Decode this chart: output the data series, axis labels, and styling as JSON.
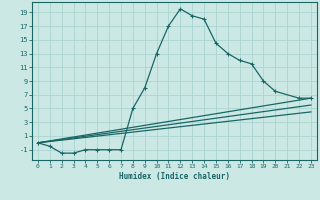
{
  "xlabel": "Humidex (Indice chaleur)",
  "bg_color": "#cce8e4",
  "grid_color": "#aad4d0",
  "line_color": "#1a6666",
  "xlim": [
    -0.5,
    23.5
  ],
  "ylim": [
    -2.5,
    20.5
  ],
  "xticks": [
    0,
    1,
    2,
    3,
    4,
    5,
    6,
    7,
    8,
    9,
    10,
    11,
    12,
    13,
    14,
    15,
    16,
    17,
    18,
    19,
    20,
    21,
    22,
    23
  ],
  "yticks": [
    -1,
    1,
    3,
    5,
    7,
    9,
    11,
    13,
    15,
    17,
    19
  ],
  "series_main": {
    "x": [
      0,
      1,
      2,
      3,
      4,
      5,
      6,
      7,
      8,
      9,
      10,
      11,
      12,
      13,
      14,
      15,
      16,
      17,
      18,
      19,
      20,
      22,
      23
    ],
    "y": [
      0,
      -0.5,
      -1.5,
      -1.5,
      -1,
      -1,
      -1,
      -1,
      5,
      8,
      13,
      17,
      19.5,
      18.5,
      18,
      14.5,
      13,
      12,
      11.5,
      9,
      7.5,
      6.5,
      6.5
    ]
  },
  "series_dotted": {
    "x": [
      0,
      1,
      2,
      3,
      4,
      5,
      6,
      7,
      8,
      9,
      10,
      11,
      12,
      13,
      14,
      15,
      16,
      17,
      18,
      19,
      20,
      22,
      23
    ],
    "y": [
      0,
      -0.5,
      -1.5,
      -1.5,
      -1,
      -1,
      -1,
      -1,
      5,
      8,
      13,
      17,
      19.5,
      18.5,
      18,
      14.5,
      13,
      12,
      11.5,
      9,
      7.5,
      6.5,
      6.5
    ]
  },
  "series_linear1": {
    "x": [
      0,
      23
    ],
    "y": [
      0,
      6.5
    ]
  },
  "series_linear2": {
    "x": [
      0,
      23
    ],
    "y": [
      0,
      5.5
    ]
  },
  "series_linear3": {
    "x": [
      0,
      23
    ],
    "y": [
      0,
      4.5
    ]
  }
}
